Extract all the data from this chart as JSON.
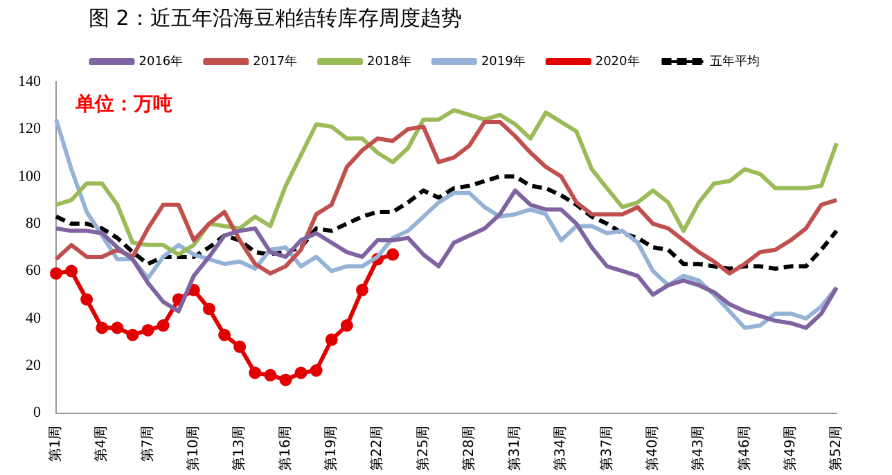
{
  "chart_data": {
    "type": "line",
    "title": "图 2：近五年沿海豆粕结转库存周度趋势",
    "annotations": [
      "单位：万吨"
    ],
    "categories": [
      "第1周",
      null,
      null,
      "第4周",
      null,
      null,
      "第7周",
      null,
      null,
      "第10周",
      null,
      null,
      "第13周",
      null,
      null,
      "第16周",
      null,
      null,
      "第19周",
      null,
      null,
      "第22周",
      null,
      null,
      "第25周",
      null,
      null,
      "第28周",
      null,
      null,
      "第31周",
      null,
      null,
      "第34周",
      null,
      null,
      "第37周",
      null,
      null,
      "第40周",
      null,
      null,
      "第43周",
      null,
      null,
      "第46周",
      null,
      null,
      "第49周",
      null,
      null,
      "第52周"
    ],
    "series": [
      {
        "name": "2016年",
        "color": "#8064a2",
        "marker": "none",
        "line_style": "solid",
        "values": [
          78,
          77,
          77,
          76,
          70,
          65,
          55,
          47,
          43,
          58,
          66,
          75,
          77,
          78,
          68,
          66,
          73,
          76,
          72,
          68,
          66,
          73,
          73,
          74,
          67,
          62,
          72,
          75,
          78,
          84,
          94,
          88,
          86,
          86,
          80,
          70,
          62,
          60,
          58,
          50,
          54,
          56,
          54,
          51,
          46,
          43,
          41,
          39,
          38,
          36,
          42,
          53
        ]
      },
      {
        "name": "2017年",
        "color": "#c0504d",
        "marker": "none",
        "line_style": "solid",
        "values": [
          65,
          71,
          66,
          66,
          69,
          66,
          78,
          88,
          88,
          73,
          80,
          85,
          73,
          63,
          59,
          62,
          69,
          84,
          88,
          104,
          111,
          116,
          115,
          120,
          121,
          106,
          108,
          113,
          123,
          123,
          117,
          110,
          104,
          100,
          89,
          84,
          84,
          84,
          87,
          80,
          78,
          73,
          68,
          64,
          59,
          63,
          68,
          69,
          73,
          78,
          88,
          90
        ]
      },
      {
        "name": "2018年",
        "color": "#9bbb59",
        "marker": "none",
        "line_style": "solid",
        "values": [
          88,
          90,
          97,
          97,
          88,
          72,
          71,
          71,
          67,
          71,
          80,
          79,
          78,
          83,
          79,
          96,
          109,
          122,
          121,
          116,
          116,
          110,
          106,
          112,
          124,
          124,
          128,
          126,
          124,
          126,
          122,
          116,
          127,
          123,
          119,
          103,
          95,
          87,
          89,
          94,
          89,
          77,
          89,
          97,
          98,
          103,
          101,
          95,
          95,
          95,
          96,
          114
        ]
      },
      {
        "name": "2019年",
        "color": "#95b3d7",
        "marker": "none",
        "line_style": "solid",
        "values": [
          124,
          103,
          85,
          75,
          65,
          65,
          57,
          66,
          71,
          67,
          65,
          63,
          64,
          61,
          69,
          70,
          62,
          66,
          60,
          62,
          62,
          66,
          74,
          77,
          83,
          89,
          93,
          93,
          87,
          83,
          84,
          86,
          84,
          73,
          79,
          79,
          76,
          77,
          72,
          60,
          54,
          58,
          56,
          50,
          43,
          36,
          37,
          42,
          42,
          40,
          45,
          53
        ]
      },
      {
        "name": "2020年",
        "color": "#e00000",
        "marker": "circle",
        "line_style": "solid",
        "values": [
          59,
          60,
          48,
          36,
          36,
          33,
          35,
          37,
          48,
          52,
          44,
          33,
          28,
          17,
          16,
          14,
          17,
          18,
          31,
          37,
          52,
          65,
          67,
          null,
          null,
          null,
          null,
          null,
          null,
          null,
          null,
          null,
          null,
          null,
          null,
          null,
          null,
          null,
          null,
          null,
          null,
          null,
          null,
          null,
          null,
          null,
          null,
          null,
          null,
          null,
          null,
          null
        ]
      },
      {
        "name": "五年平均",
        "color": "#000000",
        "marker": "none",
        "line_style": "dashed",
        "values": [
          83,
          80,
          80,
          78,
          74,
          68,
          63,
          66,
          66,
          66,
          70,
          75,
          73,
          68,
          67,
          68,
          70,
          78,
          77,
          80,
          83,
          85,
          85,
          89,
          94,
          91,
          95,
          96,
          98,
          100,
          100,
          96,
          95,
          92,
          88,
          83,
          80,
          76,
          74,
          70,
          69,
          63,
          63,
          62,
          61,
          62,
          62,
          61,
          62,
          62,
          69,
          77
        ]
      }
    ],
    "ylim": [
      0,
      140
    ],
    "yticks": [
      0,
      20,
      40,
      60,
      80,
      100,
      120,
      140
    ],
    "grid": false,
    "legend": "top"
  }
}
